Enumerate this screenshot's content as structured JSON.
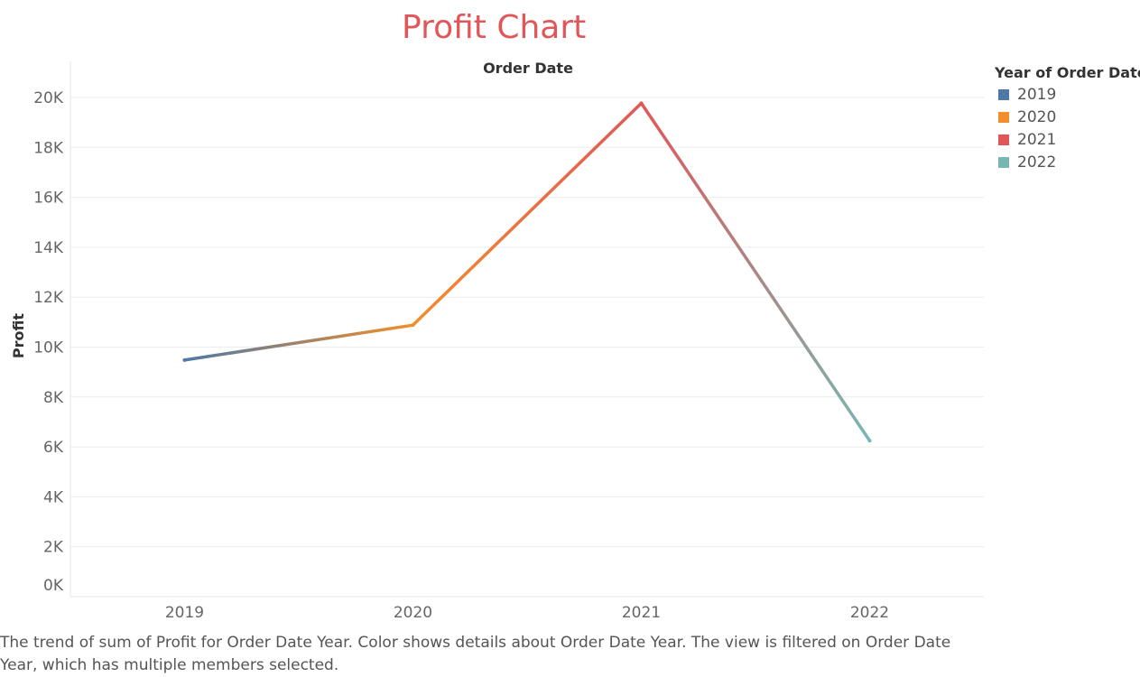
{
  "header": {
    "title": "Profit Chart"
  },
  "caption": "The trend of sum of Profit for Order Date Year.  Color shows details about Order Date Year. The view is filtered on Order Date Year, which has multiple members selected.",
  "colors": {
    "title": "#e15759",
    "2019": "#4e79a7",
    "2020": "#f28e2b",
    "2021": "#e15759",
    "2022": "#76b7b2"
  },
  "legend": {
    "title": "Year of Order Date",
    "items": [
      {
        "label": "2019",
        "color": "#4e79a7"
      },
      {
        "label": "2020",
        "color": "#f28e2b"
      },
      {
        "label": "2021",
        "color": "#e15759"
      },
      {
        "label": "2022",
        "color": "#76b7b2"
      }
    ]
  },
  "chart_data": {
    "type": "line",
    "title": "Profit Chart",
    "xlabel": "Order Date",
    "ylabel": "Profit",
    "categories": [
      "2019",
      "2020",
      "2021",
      "2022"
    ],
    "values": [
      9480,
      10880,
      19770,
      6250
    ],
    "point_colors": [
      "#4e79a7",
      "#f28e2b",
      "#e15759",
      "#76b7b2"
    ],
    "ylim": [
      0,
      20000
    ],
    "yticks": [
      0,
      2000,
      4000,
      6000,
      8000,
      10000,
      12000,
      14000,
      16000,
      18000,
      20000
    ],
    "ytick_labels": [
      "0K",
      "2K",
      "4K",
      "6K",
      "8K",
      "10K",
      "12K",
      "14K",
      "16K",
      "18K",
      "20K"
    ],
    "grid": true,
    "legend_position": "right"
  }
}
